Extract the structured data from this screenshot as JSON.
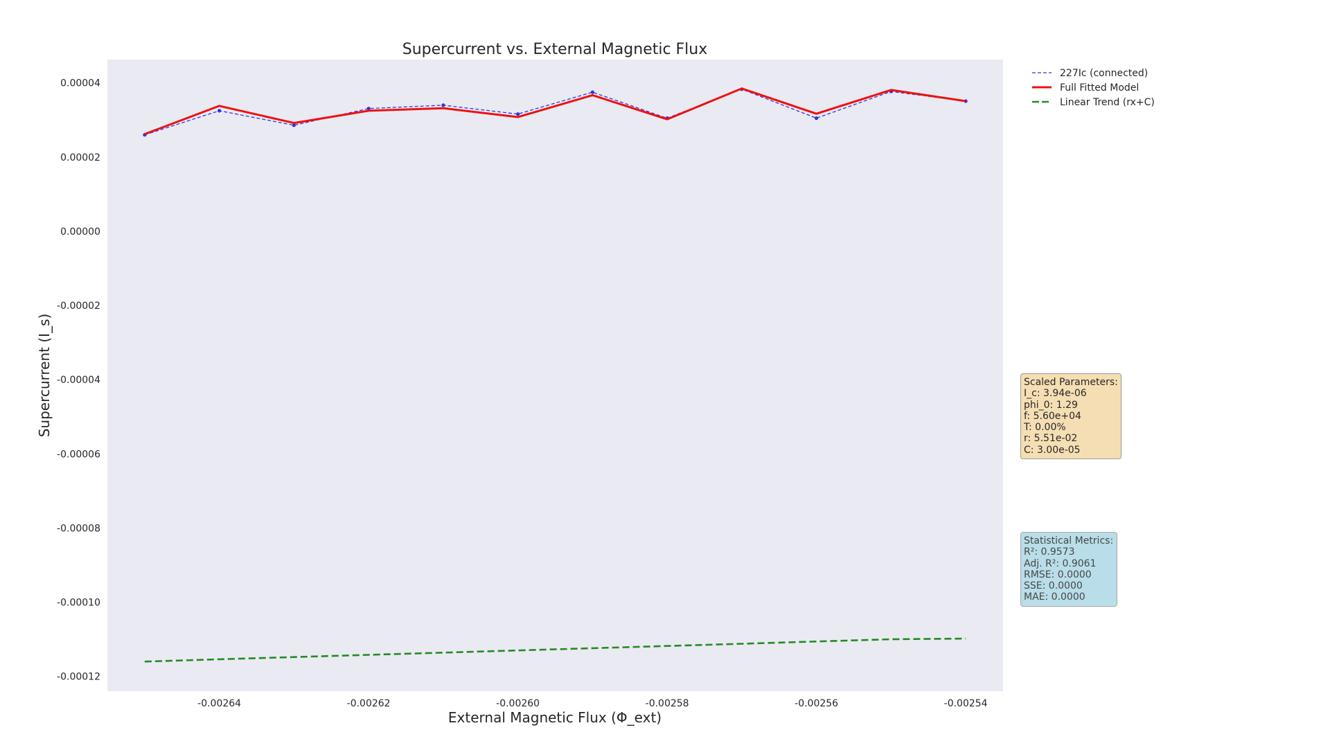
{
  "chart_data": {
    "type": "line",
    "title": "Supercurrent vs. External Magnetic Flux",
    "xlabel": "External Magnetic Flux (Φ_ext)",
    "ylabel": "Supercurrent (I_s)",
    "xlim": [
      -0.002655,
      -0.002535
    ],
    "ylim": [
      -0.000124,
      4.63e-05
    ],
    "x_ticks": [
      -0.00264,
      -0.00262,
      -0.0026,
      -0.00258,
      -0.00256,
      -0.00254
    ],
    "x_tick_labels": [
      "-0.00264",
      "-0.00262",
      "-0.00260",
      "-0.00258",
      "-0.00256",
      "-0.00254"
    ],
    "y_ticks": [
      4e-05,
      2e-05,
      0.0,
      -2e-05,
      -4e-05,
      -6e-05,
      -8e-05,
      -0.0001,
      -0.00012
    ],
    "y_tick_labels": [
      "0.00004",
      "0.00002",
      "0.00000",
      "-0.00002",
      "-0.00004",
      "-0.00006",
      "-0.00008",
      "-0.00010",
      "-0.00012"
    ],
    "x": [
      -0.00265,
      -0.00264,
      -0.00263,
      -0.00262,
      -0.00261,
      -0.0026,
      -0.00259,
      -0.00258,
      -0.00257,
      -0.00256,
      -0.00255,
      -0.00254
    ],
    "series": [
      {
        "name": "227Ic (connected)",
        "style": "dashed-with-markers",
        "color": "#3333dd",
        "values": [
          2.6e-05,
          3.25e-05,
          2.86e-05,
          3.31e-05,
          3.4e-05,
          3.16e-05,
          3.75e-05,
          3.05e-05,
          3.83e-05,
          3.05e-05,
          3.77e-05,
          3.51e-05
        ]
      },
      {
        "name": "Full Fitted Model",
        "style": "solid",
        "color": "#ee1111",
        "values": [
          2.62e-05,
          3.38e-05,
          2.92e-05,
          3.25e-05,
          3.32e-05,
          3.08e-05,
          3.67e-05,
          3.02e-05,
          3.85e-05,
          3.17e-05,
          3.81e-05,
          3.51e-05
        ]
      },
      {
        "name": "Linear Trend (rx+C)",
        "style": "dashed",
        "color": "#228b22",
        "values": [
          -0.000116,
          -0.0001154,
          -0.0001148,
          -0.0001142,
          -0.0001136,
          -0.000113,
          -0.0001124,
          -0.0001118,
          -0.0001112,
          -0.0001106,
          -0.00011,
          -0.0001098
        ]
      }
    ],
    "legend_position": "top-right outside",
    "grid": false
  },
  "params_box": {
    "title": "Scaled Parameters:",
    "lines": [
      "I_c: 3.94e-06",
      "phi_0: 1.29",
      "f: 5.60e+04",
      "T: 0.00%",
      "r: 5.51e-02",
      "C: 3.00e-05"
    ]
  },
  "stats_box": {
    "title": "Statistical Metrics:",
    "lines": [
      "R²: 0.9573",
      "Adj. R²: 0.9061",
      "RMSE: 0.0000",
      "SSE: 0.0000",
      "MAE: 0.0000"
    ]
  },
  "colors": {
    "plot_background": "#eaeaf2"
  }
}
